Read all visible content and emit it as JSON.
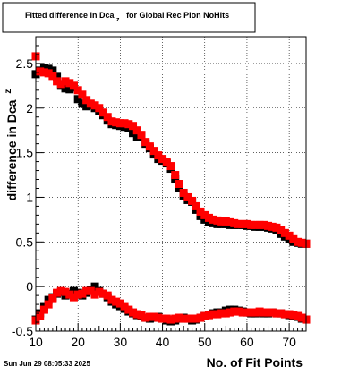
{
  "chart_data": {
    "type": "scatter",
    "title": {
      "prefix": "Fitted difference in Dca",
      "subscript": "z",
      "suffix": "for Global Rec Pion NoHits"
    },
    "xlabel": "No. of Fit Points",
    "ylabel": {
      "text": "difference in Dca",
      "subscript": "z"
    },
    "timestamp": "Sun Jun 29 08:05:33 2025",
    "xlim": [
      10,
      74
    ],
    "ylim": [
      -0.5,
      2.8
    ],
    "xticks": [
      10,
      20,
      30,
      40,
      50,
      60,
      70
    ],
    "yticks": [
      -0.5,
      0,
      0.5,
      1,
      1.5,
      2,
      2.5
    ],
    "ytick_labels": [
      "-0.5",
      "0",
      "0.5",
      "1",
      "1.5",
      "2",
      "2.5"
    ],
    "grid": true,
    "series": [
      {
        "color": "#000000",
        "x": [
          10,
          11,
          12,
          13,
          14,
          15,
          16,
          17,
          18,
          19,
          20,
          21,
          22,
          23,
          24,
          25,
          26,
          27,
          28,
          29,
          30,
          31,
          32,
          33,
          34,
          35,
          36,
          37,
          38,
          39,
          40,
          41,
          42,
          43,
          44,
          45,
          46,
          47,
          48,
          49,
          50,
          51,
          52,
          53,
          54,
          55,
          56,
          57,
          58,
          59,
          60,
          61,
          62,
          63,
          64,
          65,
          66,
          67,
          68,
          69,
          70,
          71,
          72,
          73,
          74
        ],
        "y": [
          2.38,
          2.42,
          2.45,
          2.44,
          2.42,
          2.35,
          2.25,
          2.22,
          2.21,
          2.23,
          2.1,
          2.05,
          2.02,
          2.03,
          2.0,
          1.97,
          1.92,
          1.86,
          1.82,
          1.81,
          1.8,
          1.79,
          1.78,
          1.72,
          1.68,
          1.68,
          1.6,
          1.55,
          1.48,
          1.43,
          1.41,
          1.38,
          1.32,
          1.2,
          1.1,
          1.02,
          0.97,
          0.95,
          0.86,
          0.79,
          0.75,
          0.72,
          0.71,
          0.7,
          0.7,
          0.7,
          0.69,
          0.69,
          0.69,
          0.69,
          0.68,
          0.68,
          0.67,
          0.67,
          0.67,
          0.66,
          0.65,
          0.63,
          0.59,
          0.56,
          0.53,
          0.5,
          0.49,
          0.48,
          0.48
        ]
      },
      {
        "color": "#ff0000",
        "x": [
          10,
          11,
          12,
          13,
          14,
          15,
          16,
          17,
          18,
          19,
          20,
          21,
          22,
          23,
          24,
          25,
          26,
          27,
          28,
          29,
          30,
          31,
          32,
          33,
          34,
          35,
          36,
          37,
          38,
          39,
          40,
          41,
          42,
          43,
          44,
          45,
          46,
          47,
          48,
          49,
          50,
          51,
          52,
          53,
          54,
          55,
          56,
          57,
          58,
          59,
          60,
          61,
          62,
          63,
          64,
          65,
          66,
          67,
          68,
          69,
          70,
          71,
          72,
          73,
          74
        ],
        "y": [
          2.58,
          2.41,
          2.4,
          2.39,
          2.36,
          2.3,
          2.27,
          2.3,
          2.28,
          2.25,
          2.2,
          2.15,
          2.09,
          2.05,
          2.03,
          2.0,
          1.95,
          1.9,
          1.85,
          1.84,
          1.83,
          1.83,
          1.82,
          1.8,
          1.75,
          1.7,
          1.62,
          1.57,
          1.52,
          1.47,
          1.43,
          1.4,
          1.35,
          1.25,
          1.15,
          1.05,
          1.0,
          0.96,
          0.9,
          0.84,
          0.8,
          0.77,
          0.75,
          0.74,
          0.73,
          0.73,
          0.72,
          0.71,
          0.7,
          0.7,
          0.7,
          0.69,
          0.69,
          0.69,
          0.69,
          0.68,
          0.67,
          0.66,
          0.63,
          0.6,
          0.57,
          0.53,
          0.5,
          0.49,
          0.48
        ]
      },
      {
        "color": "#000000",
        "x": [
          10,
          11,
          12,
          13,
          14,
          15,
          16,
          17,
          18,
          19,
          20,
          21,
          22,
          23,
          24,
          25,
          26,
          27,
          28,
          29,
          30,
          31,
          32,
          33,
          34,
          35,
          36,
          37,
          38,
          39,
          40,
          41,
          42,
          43,
          44,
          45,
          46,
          47,
          48,
          49,
          50,
          51,
          52,
          53,
          54,
          55,
          56,
          57,
          58,
          59,
          60,
          61,
          62,
          63,
          64,
          65,
          66,
          67,
          68,
          69,
          70,
          71,
          72,
          73,
          74
        ],
        "y": [
          -0.37,
          -0.3,
          -0.22,
          -0.15,
          -0.12,
          -0.08,
          -0.06,
          -0.1,
          -0.08,
          -0.05,
          -0.07,
          -0.1,
          -0.07,
          -0.04,
          0.0,
          -0.05,
          -0.08,
          -0.12,
          -0.17,
          -0.2,
          -0.22,
          -0.25,
          -0.28,
          -0.3,
          -0.32,
          -0.33,
          -0.35,
          -0.36,
          -0.35,
          -0.34,
          -0.36,
          -0.38,
          -0.39,
          -0.38,
          -0.36,
          -0.35,
          -0.36,
          -0.38,
          -0.37,
          -0.35,
          -0.33,
          -0.32,
          -0.3,
          -0.29,
          -0.29,
          -0.27,
          -0.26,
          -0.26,
          -0.27,
          -0.28,
          -0.29,
          -0.3,
          -0.3,
          -0.29,
          -0.3,
          -0.3,
          -0.29,
          -0.3,
          -0.3,
          -0.31,
          -0.32,
          -0.33,
          -0.34,
          -0.36,
          -0.37
        ]
      },
      {
        "color": "#ff0000",
        "x": [
          10,
          11,
          12,
          13,
          14,
          15,
          16,
          17,
          18,
          19,
          20,
          21,
          22,
          23,
          24,
          25,
          26,
          27,
          28,
          29,
          30,
          31,
          32,
          33,
          34,
          35,
          36,
          37,
          38,
          39,
          40,
          41,
          42,
          43,
          44,
          45,
          46,
          47,
          48,
          49,
          50,
          51,
          52,
          53,
          54,
          55,
          56,
          57,
          58,
          59,
          60,
          61,
          62,
          63,
          64,
          65,
          66,
          67,
          68,
          69,
          70,
          71,
          72,
          73,
          74
        ],
        "y": [
          -0.38,
          -0.33,
          -0.26,
          -0.2,
          -0.13,
          -0.07,
          -0.05,
          -0.06,
          -0.09,
          -0.12,
          -0.09,
          -0.08,
          -0.05,
          -0.05,
          -0.09,
          -0.06,
          -0.08,
          -0.1,
          -0.15,
          -0.17,
          -0.19,
          -0.22,
          -0.26,
          -0.29,
          -0.31,
          -0.32,
          -0.35,
          -0.34,
          -0.34,
          -0.35,
          -0.36,
          -0.36,
          -0.37,
          -0.36,
          -0.35,
          -0.36,
          -0.36,
          -0.36,
          -0.36,
          -0.35,
          -0.33,
          -0.32,
          -0.31,
          -0.31,
          -0.3,
          -0.3,
          -0.29,
          -0.28,
          -0.28,
          -0.29,
          -0.29,
          -0.29,
          -0.29,
          -0.28,
          -0.29,
          -0.29,
          -0.29,
          -0.3,
          -0.3,
          -0.31,
          -0.31,
          -0.32,
          -0.33,
          -0.35,
          -0.37
        ]
      }
    ]
  }
}
